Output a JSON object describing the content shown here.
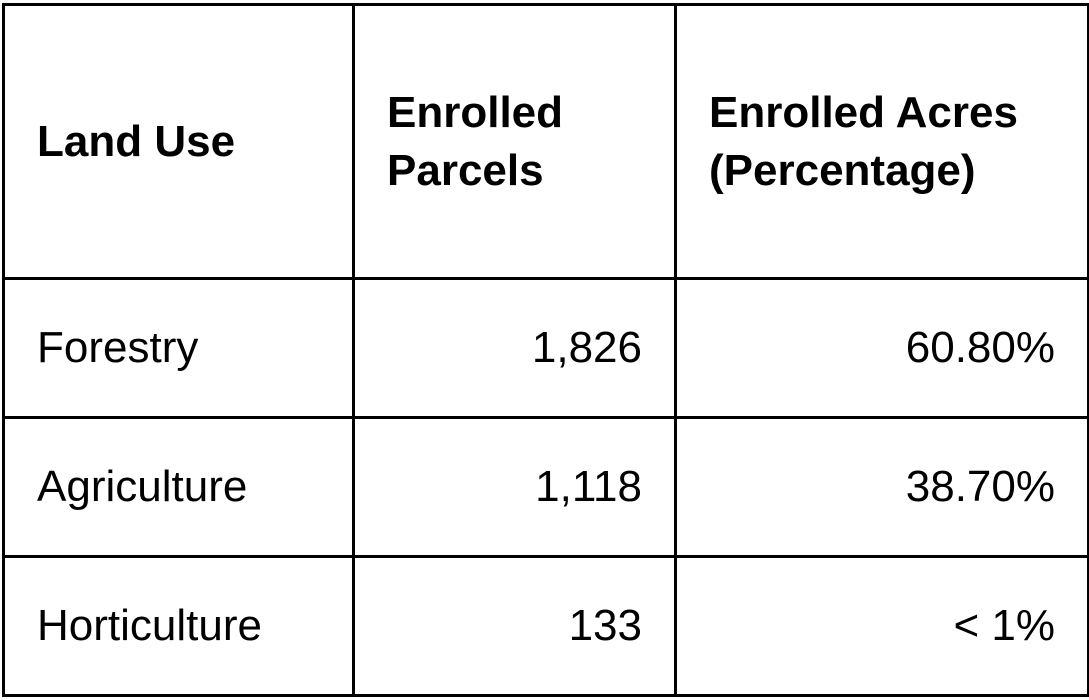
{
  "table": {
    "header": [
      "Land Use",
      "Enrolled Parcels",
      "Enrolled Acres (Percentage)"
    ],
    "rows": [
      [
        "Forestry",
        "1,826",
        "60.80%"
      ],
      [
        "Agriculture",
        "1,118",
        "38.70%"
      ],
      [
        "Horticulture",
        "133",
        "< 1%"
      ]
    ]
  }
}
